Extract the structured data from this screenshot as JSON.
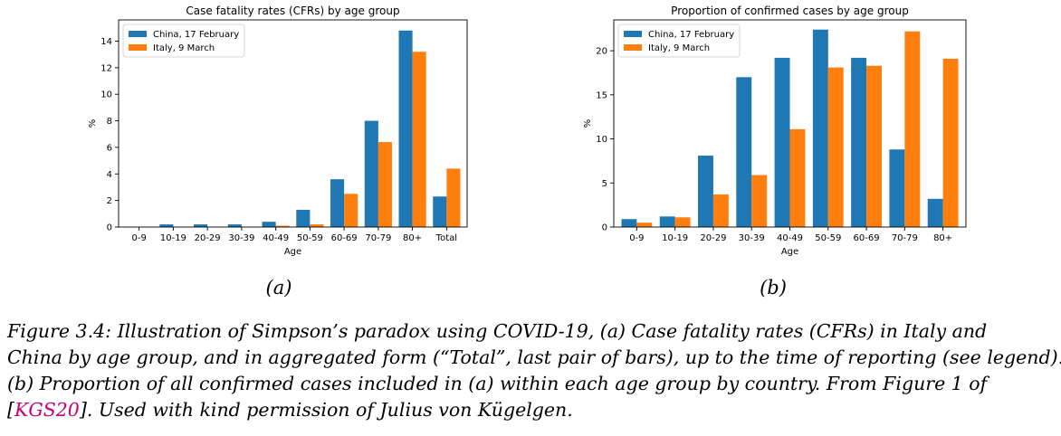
{
  "chart_data": [
    {
      "type": "bar",
      "title": "Case fatality rates (CFRs) by age group",
      "xlabel": "Age",
      "ylabel": "%",
      "categories": [
        "0-9",
        "10-19",
        "20-29",
        "30-39",
        "40-49",
        "50-59",
        "60-69",
        "70-79",
        "80+",
        "Total"
      ],
      "series": [
        {
          "name": "China, 17 February",
          "color": "#1f77b4",
          "values": [
            0,
            0.2,
            0.2,
            0.2,
            0.4,
            1.3,
            3.6,
            8.0,
            14.8,
            2.3
          ]
        },
        {
          "name": "Italy, 9 March",
          "color": "#ff7f0e",
          "values": [
            0,
            0,
            0,
            0,
            0.1,
            0.2,
            2.5,
            6.4,
            13.2,
            4.4
          ]
        }
      ],
      "ylim": [
        0,
        15.6
      ],
      "yticks": [
        0,
        2,
        4,
        6,
        8,
        10,
        12,
        14
      ],
      "legend": "top-left",
      "grid": false
    },
    {
      "type": "bar",
      "title": "Proportion of confirmed cases by age group",
      "xlabel": "Age",
      "ylabel": "%",
      "categories": [
        "0-9",
        "10-19",
        "20-29",
        "30-39",
        "40-49",
        "50-59",
        "60-69",
        "70-79",
        "80+"
      ],
      "series": [
        {
          "name": "China, 17 February",
          "color": "#1f77b4",
          "values": [
            0.9,
            1.2,
            8.1,
            17.0,
            19.2,
            22.4,
            19.2,
            8.8,
            3.2
          ]
        },
        {
          "name": "Italy, 9 March",
          "color": "#ff7f0e",
          "values": [
            0.5,
            1.1,
            3.7,
            5.9,
            11.1,
            18.1,
            18.3,
            22.2,
            19.1
          ]
        }
      ],
      "ylim": [
        0,
        23.5
      ],
      "yticks": [
        0,
        5,
        10,
        15,
        20
      ],
      "legend": "top-left",
      "grid": false
    }
  ],
  "sublabels": {
    "a": "(a)",
    "b": "(b)"
  },
  "caption": {
    "line1": "Figure 3.4: Illustration of Simpson’s paradox using COVID-19, (a) Case fatality rates (CFRs) in Italy and",
    "line2": "China by age group, and in aggregated form (“Total”, last pair of bars), up to the time of reporting (see legend).",
    "line3": "(b) Proportion of all confirmed cases included in (a) within each age group by country. From Figure 1 of",
    "line4_open": "[",
    "line4_cite": "KGS20",
    "line4_rest": "]. Used with kind permission of Julius von Kügelgen."
  }
}
